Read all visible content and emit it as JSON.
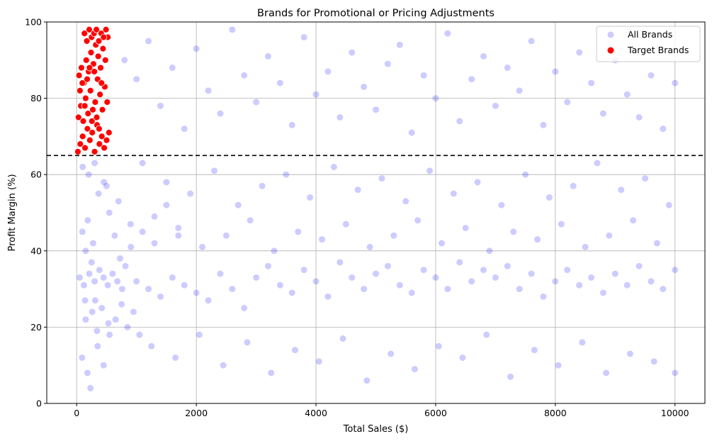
{
  "chart_data": {
    "type": "scatter",
    "title": "Brands for Promotional or Pricing Adjustments",
    "xlabel": "Total Sales ($)",
    "ylabel": "Profit Margin (%)",
    "xlim": [
      -500,
      10500
    ],
    "ylim": [
      0,
      100
    ],
    "x_ticks": [
      0,
      2000,
      4000,
      6000,
      8000,
      10000
    ],
    "y_ticks": [
      0,
      20,
      40,
      60,
      80,
      100
    ],
    "grid": true,
    "legend_position": "top-right",
    "threshold_line": {
      "axis": "y",
      "value": 65,
      "style": "dashed",
      "color": "#000000"
    },
    "series": [
      {
        "name": "All Brands",
        "color": "#0000ff",
        "alpha": 0.2,
        "points": [
          [
            50,
            33
          ],
          [
            120,
            31
          ],
          [
            210,
            34
          ],
          [
            300,
            32
          ],
          [
            380,
            35
          ],
          [
            450,
            33
          ],
          [
            520,
            31
          ],
          [
            600,
            34
          ],
          [
            680,
            32
          ],
          [
            760,
            30
          ],
          [
            150,
            22
          ],
          [
            260,
            24
          ],
          [
            340,
            19
          ],
          [
            90,
            12
          ],
          [
            180,
            8
          ],
          [
            230,
            4
          ],
          [
            140,
            27
          ],
          [
            310,
            27
          ],
          [
            420,
            25
          ],
          [
            530,
            21
          ],
          [
            95,
            45
          ],
          [
            185,
            48
          ],
          [
            275,
            42
          ],
          [
            365,
            55
          ],
          [
            455,
            58
          ],
          [
            545,
            50
          ],
          [
            635,
            44
          ],
          [
            725,
            38
          ],
          [
            815,
            36
          ],
          [
            905,
            41
          ],
          [
            100,
            62
          ],
          [
            200,
            60
          ],
          [
            300,
            63
          ],
          [
            500,
            57
          ],
          [
            700,
            53
          ],
          [
            900,
            47
          ],
          [
            1100,
            45
          ],
          [
            1300,
            49
          ],
          [
            1500,
            52
          ],
          [
            1700,
            44
          ],
          [
            1000,
            32
          ],
          [
            1200,
            30
          ],
          [
            1400,
            28
          ],
          [
            1600,
            33
          ],
          [
            1800,
            31
          ],
          [
            2000,
            29
          ],
          [
            2200,
            27
          ],
          [
            2400,
            34
          ],
          [
            2600,
            30
          ],
          [
            2800,
            25
          ],
          [
            3000,
            33
          ],
          [
            3200,
            36
          ],
          [
            3400,
            31
          ],
          [
            3600,
            29
          ],
          [
            3800,
            35
          ],
          [
            4000,
            32
          ],
          [
            4200,
            28
          ],
          [
            4400,
            37
          ],
          [
            4600,
            33
          ],
          [
            4800,
            30
          ],
          [
            5000,
            34
          ],
          [
            5200,
            36
          ],
          [
            5400,
            31
          ],
          [
            5600,
            29
          ],
          [
            5800,
            35
          ],
          [
            6000,
            33
          ],
          [
            6200,
            30
          ],
          [
            6400,
            37
          ],
          [
            6600,
            32
          ],
          [
            6800,
            35
          ],
          [
            7000,
            33
          ],
          [
            7200,
            36
          ],
          [
            7400,
            30
          ],
          [
            7600,
            34
          ],
          [
            7800,
            28
          ],
          [
            8000,
            32
          ],
          [
            8200,
            35
          ],
          [
            8400,
            31
          ],
          [
            8600,
            33
          ],
          [
            8800,
            29
          ],
          [
            9000,
            34
          ],
          [
            9200,
            31
          ],
          [
            9400,
            36
          ],
          [
            9600,
            32
          ],
          [
            9800,
            30
          ],
          [
            10000,
            35
          ],
          [
            800,
            90
          ],
          [
            1000,
            85
          ],
          [
            1200,
            95
          ],
          [
            1400,
            78
          ],
          [
            1600,
            88
          ],
          [
            1800,
            72
          ],
          [
            2000,
            93
          ],
          [
            2200,
            82
          ],
          [
            2400,
            76
          ],
          [
            2600,
            98
          ],
          [
            2800,
            86
          ],
          [
            3000,
            79
          ],
          [
            3200,
            91
          ],
          [
            3400,
            84
          ],
          [
            3600,
            73
          ],
          [
            3800,
            96
          ],
          [
            4000,
            81
          ],
          [
            4200,
            87
          ],
          [
            4400,
            75
          ],
          [
            4600,
            92
          ],
          [
            4800,
            83
          ],
          [
            5000,
            77
          ],
          [
            5200,
            89
          ],
          [
            5400,
            94
          ],
          [
            5600,
            71
          ],
          [
            5800,
            86
          ],
          [
            6000,
            80
          ],
          [
            6200,
            97
          ],
          [
            6400,
            74
          ],
          [
            6600,
            85
          ],
          [
            6800,
            91
          ],
          [
            7000,
            78
          ],
          [
            7200,
            88
          ],
          [
            7400,
            82
          ],
          [
            7600,
            95
          ],
          [
            7800,
            73
          ],
          [
            8000,
            87
          ],
          [
            8200,
            79
          ],
          [
            8400,
            92
          ],
          [
            8600,
            84
          ],
          [
            8800,
            76
          ],
          [
            9000,
            90
          ],
          [
            9200,
            81
          ],
          [
            9400,
            75
          ],
          [
            9600,
            86
          ],
          [
            9800,
            72
          ],
          [
            10000,
            84
          ],
          [
            1100,
            63
          ],
          [
            1500,
            58
          ],
          [
            1900,
            55
          ],
          [
            2300,
            61
          ],
          [
            2700,
            52
          ],
          [
            3100,
            57
          ],
          [
            3500,
            60
          ],
          [
            3900,
            54
          ],
          [
            4300,
            62
          ],
          [
            4700,
            56
          ],
          [
            5100,
            59
          ],
          [
            5500,
            53
          ],
          [
            5900,
            61
          ],
          [
            6300,
            55
          ],
          [
            6700,
            58
          ],
          [
            7100,
            52
          ],
          [
            7500,
            60
          ],
          [
            7900,
            54
          ],
          [
            8300,
            57
          ],
          [
            8700,
            63
          ],
          [
            9100,
            56
          ],
          [
            9500,
            59
          ],
          [
            9900,
            52
          ],
          [
            1300,
            42
          ],
          [
            1700,
            46
          ],
          [
            2100,
            41
          ],
          [
            2500,
            44
          ],
          [
            2900,
            48
          ],
          [
            3300,
            40
          ],
          [
            3700,
            45
          ],
          [
            4100,
            43
          ],
          [
            4500,
            47
          ],
          [
            4900,
            41
          ],
          [
            5300,
            44
          ],
          [
            5700,
            48
          ],
          [
            6100,
            42
          ],
          [
            6500,
            46
          ],
          [
            6900,
            40
          ],
          [
            7300,
            45
          ],
          [
            7700,
            43
          ],
          [
            8100,
            47
          ],
          [
            8500,
            41
          ],
          [
            8900,
            44
          ],
          [
            9300,
            48
          ],
          [
            9700,
            42
          ],
          [
            1250,
            15
          ],
          [
            1650,
            12
          ],
          [
            2050,
            18
          ],
          [
            2450,
            10
          ],
          [
            2850,
            16
          ],
          [
            3250,
            8
          ],
          [
            3650,
            14
          ],
          [
            4050,
            11
          ],
          [
            4450,
            17
          ],
          [
            4850,
            6
          ],
          [
            5250,
            13
          ],
          [
            5650,
            9
          ],
          [
            6050,
            15
          ],
          [
            6450,
            12
          ],
          [
            6850,
            18
          ],
          [
            7250,
            7
          ],
          [
            7650,
            14
          ],
          [
            8050,
            10
          ],
          [
            8450,
            16
          ],
          [
            8850,
            8
          ],
          [
            9250,
            13
          ],
          [
            9650,
            11
          ],
          [
            10000,
            8
          ],
          [
            150,
            40
          ],
          [
            250,
            37
          ],
          [
            350,
            15
          ],
          [
            450,
            10
          ],
          [
            550,
            18
          ],
          [
            650,
            22
          ],
          [
            750,
            26
          ],
          [
            850,
            20
          ],
          [
            950,
            24
          ],
          [
            1050,
            18
          ]
        ]
      },
      {
        "name": "Target Brands",
        "color": "#ff0000",
        "alpha": 1.0,
        "points": [
          [
            20,
            66
          ],
          [
            60,
            68
          ],
          [
            100,
            70
          ],
          [
            140,
            67
          ],
          [
            180,
            72
          ],
          [
            220,
            69
          ],
          [
            260,
            71
          ],
          [
            300,
            66
          ],
          [
            340,
            73
          ],
          [
            380,
            68
          ],
          [
            420,
            70
          ],
          [
            460,
            67
          ],
          [
            500,
            69
          ],
          [
            540,
            71
          ],
          [
            30,
            75
          ],
          [
            70,
            78
          ],
          [
            110,
            74
          ],
          [
            150,
            80
          ],
          [
            190,
            76
          ],
          [
            230,
            82
          ],
          [
            270,
            77
          ],
          [
            310,
            79
          ],
          [
            350,
            85
          ],
          [
            390,
            81
          ],
          [
            430,
            77
          ],
          [
            470,
            83
          ],
          [
            510,
            79
          ],
          [
            40,
            86
          ],
          [
            80,
            88
          ],
          [
            120,
            84
          ],
          [
            160,
            90
          ],
          [
            200,
            87
          ],
          [
            240,
            92
          ],
          [
            280,
            89
          ],
          [
            320,
            94
          ],
          [
            360,
            91
          ],
          [
            400,
            88
          ],
          [
            440,
            93
          ],
          [
            480,
            90
          ],
          [
            520,
            96
          ],
          [
            130,
            97
          ],
          [
            170,
            95
          ],
          [
            210,
            98
          ],
          [
            250,
            96
          ],
          [
            290,
            97
          ],
          [
            330,
            98
          ],
          [
            370,
            95
          ],
          [
            410,
            97
          ],
          [
            450,
            96
          ],
          [
            490,
            98
          ],
          [
            55,
            82
          ],
          [
            95,
            84
          ],
          [
            135,
            78
          ],
          [
            175,
            85
          ],
          [
            215,
            88
          ],
          [
            255,
            74
          ],
          [
            295,
            87
          ],
          [
            335,
            75
          ],
          [
            375,
            72
          ],
          [
            415,
            84
          ]
        ]
      }
    ]
  }
}
